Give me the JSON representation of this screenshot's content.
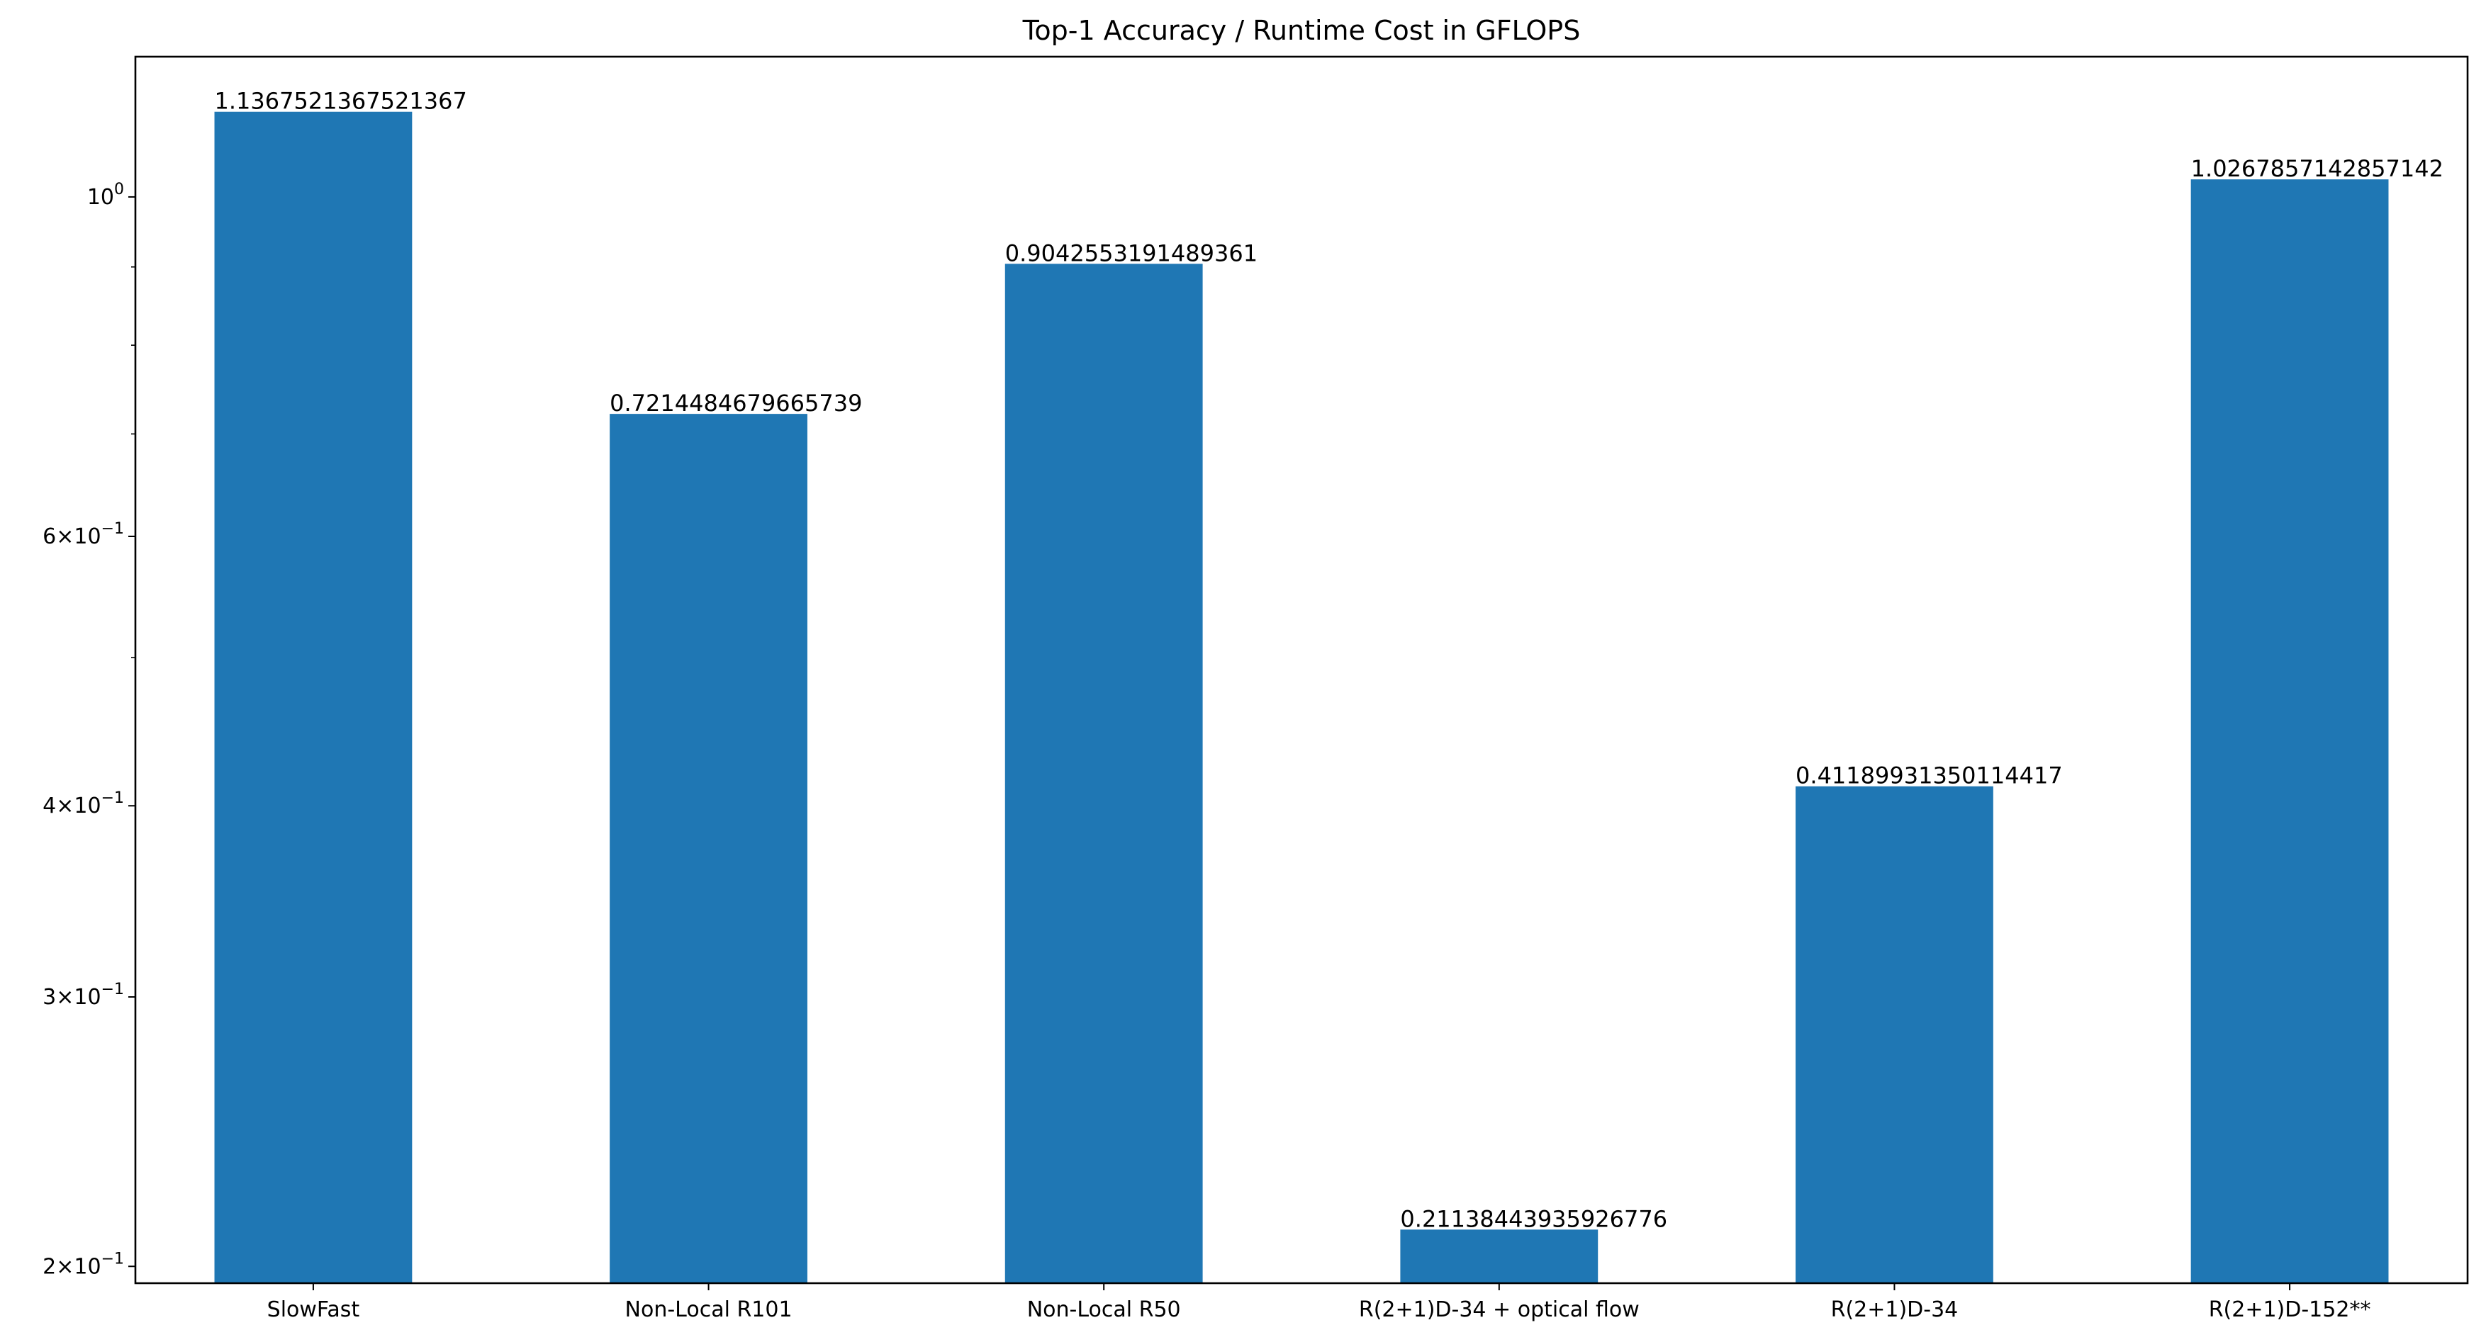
{
  "chart_data": {
    "type": "bar",
    "title": "Top-1 Accuracy / Runtime Cost in GFLOPS",
    "xlabel": "",
    "ylabel": "",
    "yscale": "log",
    "ylim": [
      0.195,
      1.235
    ],
    "grid": false,
    "legend": "none",
    "categories": [
      "SlowFast",
      "Non-Local R101",
      "Non-Local R50",
      "R(2+1)D-34 + optical flow",
      "R(2+1)D-34",
      "R(2+1)D-152**"
    ],
    "values": [
      1.1367521367521367,
      0.7214484679665739,
      0.9042553191489361,
      0.21138443935926776,
      0.41189931350114417,
      1.0267857142857142
    ],
    "data_labels": [
      "1.1367521367521367",
      "0.7214484679665739",
      "0.9042553191489361",
      "0.21138443935926776",
      "0.41189931350114417",
      "1.0267857142857142"
    ],
    "y_major_ticks": [
      {
        "value": 1.0,
        "base": "10",
        "exp": "0",
        "mult": ""
      },
      {
        "value": 0.6,
        "base": "10",
        "exp": "−1",
        "mult": "6×"
      },
      {
        "value": 0.4,
        "base": "10",
        "exp": "−1",
        "mult": "4×"
      },
      {
        "value": 0.3,
        "base": "10",
        "exp": "−1",
        "mult": "3×"
      },
      {
        "value": 0.2,
        "base": "10",
        "exp": "−1",
        "mult": "2×"
      }
    ],
    "y_minor_ticks": [
      0.5,
      0.7,
      0.8,
      0.9
    ],
    "bar_color": "#1f77b4"
  }
}
